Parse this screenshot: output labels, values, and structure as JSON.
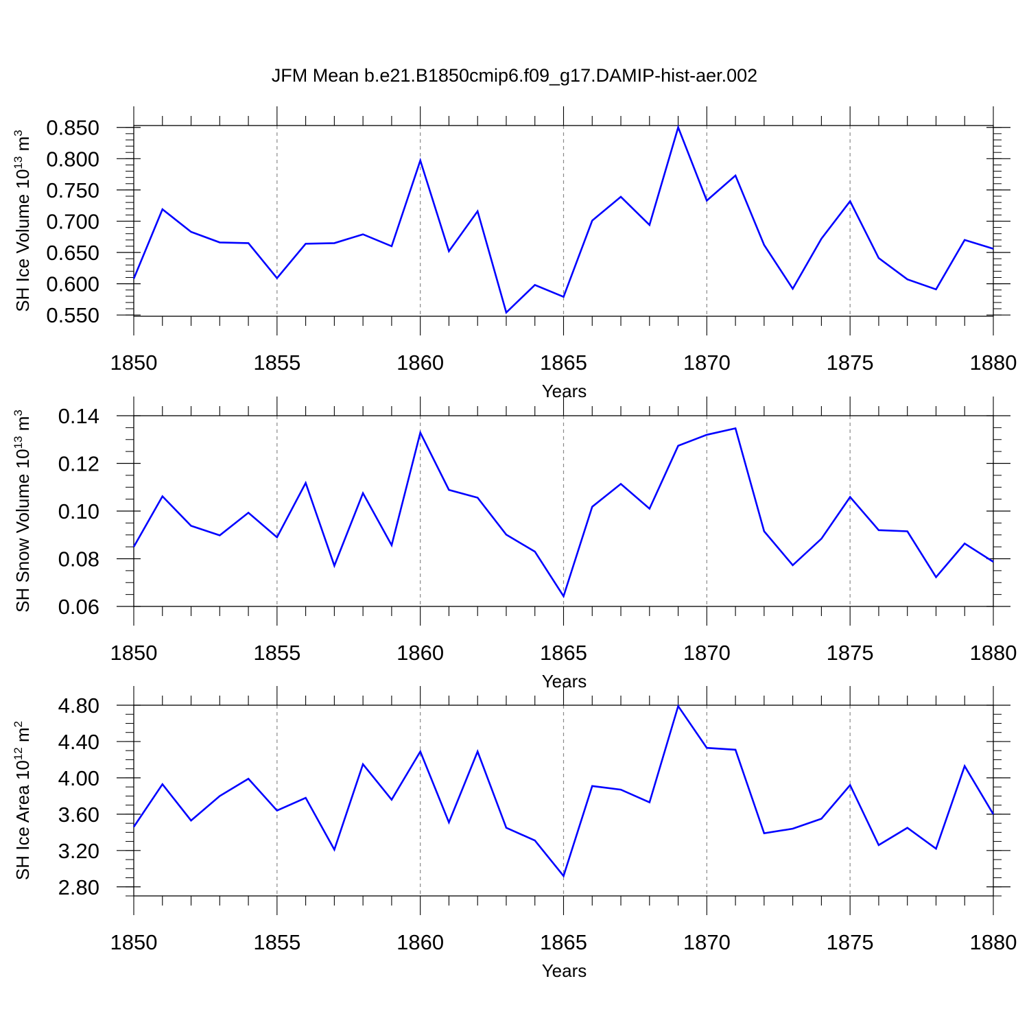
{
  "title": "JFM Mean b.e21.B1850cmip6.f09_g17.DAMIP-hist-aer.002",
  "colors": {
    "line": "#0000ff",
    "grid": "#888888",
    "axis": "#000000",
    "background": "#ffffff"
  },
  "chart_data": [
    {
      "type": "line",
      "xlabel": "Years",
      "ylabel_main": "SH Ice Volume 10",
      "ylabel_exp": "13",
      "ylabel_unit": "m",
      "ylabel_unit_exp": "3",
      "xlim": [
        1850,
        1880
      ],
      "ylim": [
        0.548,
        0.853
      ],
      "xticks": [
        "1850",
        "1855",
        "1860",
        "1865",
        "1870",
        "1875",
        "1880"
      ],
      "yticks": [
        "0.550",
        "0.600",
        "0.650",
        "0.700",
        "0.750",
        "0.800",
        "0.850"
      ],
      "grid": "vertical-dashed",
      "series": [
        {
          "name": "SH Ice Volume",
          "x": [
            1850,
            1851,
            1852,
            1853,
            1854,
            1855,
            1856,
            1857,
            1858,
            1859,
            1860,
            1861,
            1862,
            1863,
            1864,
            1865,
            1866,
            1867,
            1868,
            1869,
            1870,
            1871,
            1872,
            1873,
            1874,
            1875,
            1876,
            1877,
            1878,
            1879,
            1880
          ],
          "values": [
            0.608,
            0.719,
            0.683,
            0.666,
            0.665,
            0.609,
            0.664,
            0.665,
            0.679,
            0.66,
            0.797,
            0.652,
            0.716,
            0.554,
            0.598,
            0.579,
            0.701,
            0.739,
            0.694,
            0.85,
            0.733,
            0.773,
            0.662,
            0.592,
            0.672,
            0.732,
            0.641,
            0.607,
            0.591,
            0.67,
            0.656
          ]
        }
      ]
    },
    {
      "type": "line",
      "xlabel": "Years",
      "ylabel_main": "SH Snow Volume 10",
      "ylabel_exp": "13",
      "ylabel_unit": "m",
      "ylabel_unit_exp": "3",
      "xlim": [
        1850,
        1880
      ],
      "ylim": [
        0.06,
        0.14
      ],
      "xticks": [
        "1850",
        "1855",
        "1860",
        "1865",
        "1870",
        "1875",
        "1880"
      ],
      "yticks": [
        "0.06",
        "0.08",
        "0.10",
        "0.12",
        "0.14"
      ],
      "grid": "vertical-dashed",
      "series": [
        {
          "name": "SH Snow Volume",
          "x": [
            1850,
            1851,
            1852,
            1853,
            1854,
            1855,
            1856,
            1857,
            1858,
            1859,
            1860,
            1861,
            1862,
            1863,
            1864,
            1865,
            1866,
            1867,
            1868,
            1869,
            1870,
            1871,
            1872,
            1873,
            1874,
            1875,
            1876,
            1877,
            1878,
            1879,
            1880
          ],
          "values": [
            0.085,
            0.1062,
            0.0938,
            0.0898,
            0.0993,
            0.089,
            0.1118,
            0.0771,
            0.1075,
            0.0857,
            0.1329,
            0.1089,
            0.1056,
            0.0901,
            0.083,
            0.0643,
            0.1018,
            0.1114,
            0.101,
            0.1274,
            0.132,
            0.1347,
            0.0915,
            0.0773,
            0.0884,
            0.1059,
            0.092,
            0.0915,
            0.0723,
            0.0864,
            0.0787
          ]
        }
      ]
    },
    {
      "type": "line",
      "xlabel": "Years",
      "ylabel_main": "SH Ice Area 10",
      "ylabel_exp": "12",
      "ylabel_unit": "m",
      "ylabel_unit_exp": "2",
      "xlim": [
        1850,
        1880
      ],
      "ylim": [
        2.7,
        4.8
      ],
      "xticks": [
        "1850",
        "1855",
        "1860",
        "1865",
        "1870",
        "1875",
        "1880"
      ],
      "yticks": [
        "2.80",
        "3.20",
        "3.60",
        "4.00",
        "4.40",
        "4.80"
      ],
      "grid": "vertical-dashed",
      "series": [
        {
          "name": "SH Ice Area",
          "x": [
            1850,
            1851,
            1852,
            1853,
            1854,
            1855,
            1856,
            1857,
            1858,
            1859,
            1860,
            1861,
            1862,
            1863,
            1864,
            1865,
            1866,
            1867,
            1868,
            1869,
            1870,
            1871,
            1872,
            1873,
            1874,
            1875,
            1876,
            1877,
            1878,
            1879,
            1880
          ],
          "values": [
            3.46,
            3.93,
            3.53,
            3.8,
            3.99,
            3.64,
            3.78,
            3.21,
            4.15,
            3.76,
            4.29,
            3.51,
            4.29,
            3.45,
            3.31,
            2.92,
            3.91,
            3.87,
            3.73,
            4.79,
            4.33,
            4.31,
            3.39,
            3.44,
            3.55,
            3.92,
            3.26,
            3.45,
            3.22,
            4.13,
            3.6
          ]
        }
      ]
    }
  ]
}
